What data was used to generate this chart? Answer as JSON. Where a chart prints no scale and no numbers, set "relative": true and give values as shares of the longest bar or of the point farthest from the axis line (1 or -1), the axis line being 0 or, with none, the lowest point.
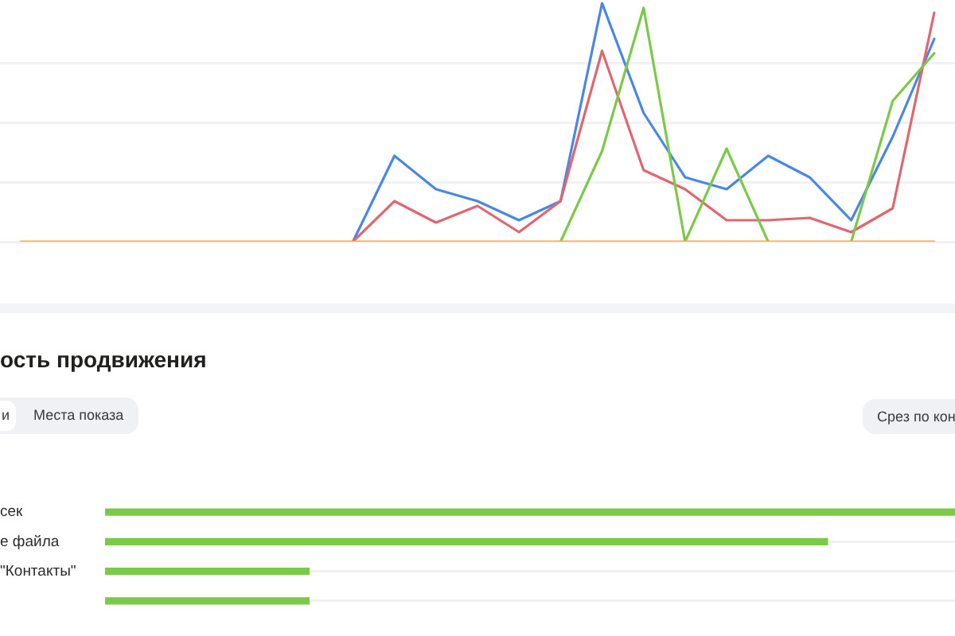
{
  "chart_data": [
    {
      "type": "line",
      "categories": [
        null,
        null,
        null,
        null,
        null,
        null,
        null,
        null,
        null,
        null,
        null,
        null,
        null,
        null,
        null,
        null,
        null,
        null,
        null,
        null,
        null,
        null,
        null
      ],
      "relative": true,
      "grid": "y",
      "tick_labels": false,
      "marker": "none",
      "series": [
        {
          "color": "#4a86e8",
          "values": [
            null,
            null,
            null,
            null,
            null,
            null,
            null,
            null,
            0,
            0.36,
            0.22,
            0.17,
            0.09,
            0.17,
            1,
            0.54,
            0.27,
            0.22,
            0.36,
            0.27,
            0.09,
            0.44,
            0.85
          ]
        },
        {
          "color": "#e06670",
          "values": [
            null,
            null,
            null,
            null,
            null,
            null,
            null,
            null,
            0,
            0.17,
            0.08,
            0.15,
            0.04,
            0.17,
            0.8,
            0.3,
            0.22,
            0.09,
            0.09,
            0.1,
            0.04,
            0.14,
            0.96
          ]
        },
        {
          "color": "#7cc948",
          "values": [
            null,
            null,
            null,
            null,
            null,
            null,
            null,
            null,
            null,
            null,
            null,
            null,
            null,
            0,
            0.38,
            0.98,
            0,
            0.39,
            0,
            null,
            0,
            0.59,
            0.79
          ]
        },
        {
          "color": "#f9a84a",
          "values": [
            0,
            0,
            0,
            0,
            0,
            0,
            0,
            0,
            0,
            0,
            0,
            0,
            0,
            0,
            0,
            0,
            0,
            0,
            0,
            0,
            0,
            0,
            0
          ]
        }
      ]
    },
    {
      "type": "bar",
      "orientation": "horizontal",
      "title": "ость продвижения",
      "categories": [
        "сек",
        "е файла",
        "\"Контакты\"",
        null
      ],
      "values": [
        1,
        0.85,
        0.24,
        0.24
      ],
      "color": "#7cc948",
      "relative": true,
      "grid": "y",
      "tick_labels": "y",
      "annotations": [
        "и",
        "Места показа",
        "Срез по кон"
      ]
    }
  ]
}
